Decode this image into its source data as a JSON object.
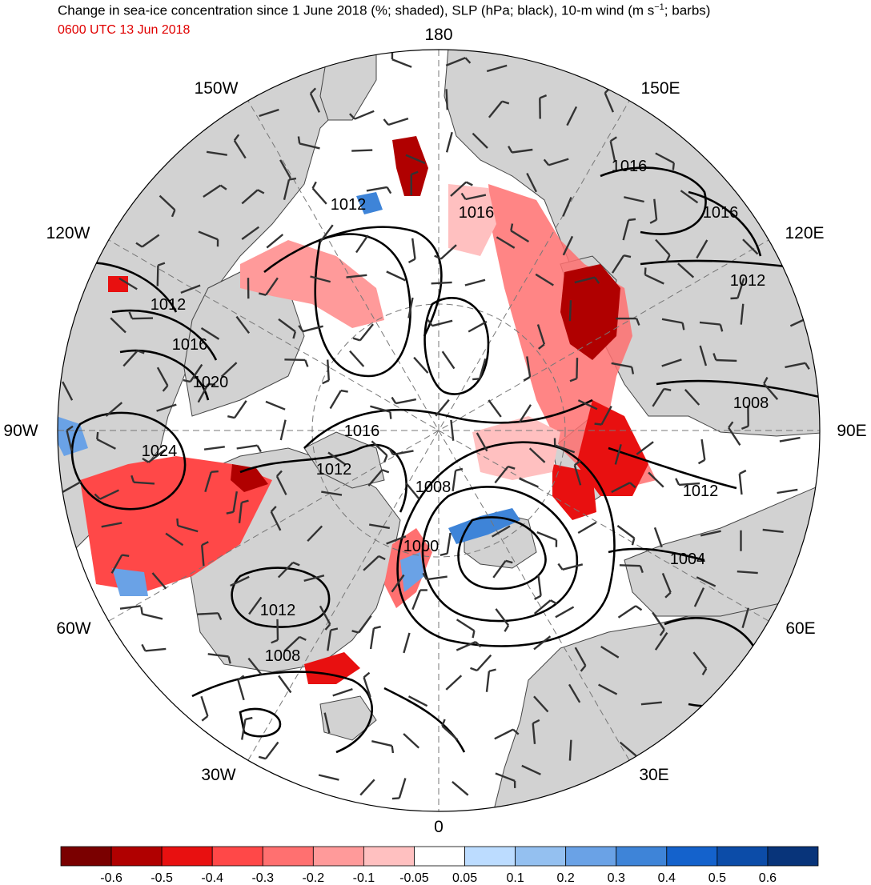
{
  "title": {
    "text": "Change in sea-ice concentration since 1 June 2018 (%; shaded), SLP (hPa; black), 10-m wind (m s",
    "sup": "−1",
    "tail": "; barbs)"
  },
  "valid_time": "0600 UTC 13 Jun 2018",
  "colors": {
    "land": "#d2d2d2",
    "ocean": "#ffffff",
    "isobar": "#000000",
    "subtitle": "#e00000"
  },
  "map": {
    "projection": "north-polar-stereographic",
    "longitude_labels": [
      "180",
      "150W",
      "150E",
      "120W",
      "120E",
      "90W",
      "90E",
      "60W",
      "60E",
      "30W",
      "30E",
      "0"
    ]
  },
  "isobar_labels": [
    "1016",
    "1016",
    "1016",
    "1012",
    "1012",
    "1016",
    "1020",
    "1024",
    "1016",
    "1012",
    "1008",
    "1012",
    "1000",
    "1004",
    "1008",
    "1012",
    "1008"
  ],
  "colorbar": {
    "ticks": [
      "-0.6",
      "-0.5",
      "-0.4",
      "-0.3",
      "-0.2",
      "-0.1",
      "-0.05",
      "0.05",
      "0.1",
      "0.2",
      "0.3",
      "0.4",
      "0.5",
      "0.6"
    ],
    "colors": [
      "#7a0000",
      "#b00000",
      "#e81010",
      "#ff4848",
      "#ff7070",
      "#ff9a9a",
      "#ffc0c0",
      "#ffffff",
      "#bcdcff",
      "#94c0f0",
      "#6aa2e6",
      "#3e84d8",
      "#1462cc",
      "#0c4ca8",
      "#08347a"
    ]
  }
}
